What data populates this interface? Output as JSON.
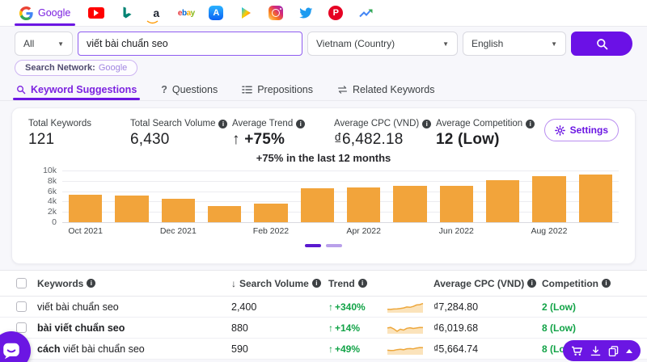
{
  "engine_bar": {
    "active_engine": "Google",
    "icons": [
      "google",
      "youtube",
      "bing",
      "amazon",
      "ebay",
      "app-store",
      "google-play",
      "instagram",
      "twitter",
      "pinterest",
      "google-trends"
    ]
  },
  "search": {
    "scope_value": "All",
    "query": "viết bài chuẩn seo",
    "country": "Vietnam (Country)",
    "language": "English"
  },
  "network_badge": {
    "label": "Search Network:",
    "value": "Google"
  },
  "tabs": [
    {
      "label": "Keyword Suggestions",
      "active": true
    },
    {
      "label": "Questions",
      "icon": "?"
    },
    {
      "label": "Prepositions"
    },
    {
      "label": "Related Keywords"
    }
  ],
  "stats": [
    {
      "label": "Total Keywords",
      "value": "121"
    },
    {
      "label": "Total Search Volume",
      "value": "6,430"
    },
    {
      "label": "Average Trend",
      "value": "+75%",
      "arrow": "↑"
    },
    {
      "label": "Average CPC (VND)",
      "value": "₫6,482.18"
    },
    {
      "label": "Average Competition",
      "value": "12 (Low)"
    }
  ],
  "settings_label": "Settings",
  "chart_data": {
    "type": "bar",
    "title": "+75% in the last 12 months",
    "categories": [
      "Oct 2021",
      "Nov 2021",
      "Dec 2021",
      "Jan 2022",
      "Feb 2022",
      "Mar 2022",
      "Apr 2022",
      "May 2022",
      "Jun 2022",
      "Jul 2022",
      "Aug 2022",
      "Sep 2022"
    ],
    "values": [
      5300,
      5150,
      4600,
      3200,
      3600,
      6500,
      6700,
      7000,
      7050,
      8200,
      8900,
      9250
    ],
    "x_tick_labels": [
      "Oct 2021",
      "Dec 2021",
      "Feb 2022",
      "Apr 2022",
      "Jun 2022",
      "Aug 2022"
    ],
    "y_ticks": [
      "10k",
      "8k",
      "6k",
      "4k",
      "2k",
      "0"
    ],
    "ylim": [
      0,
      10000
    ],
    "xlabel": "",
    "ylabel": "",
    "grid": true,
    "legend": "none",
    "bar_color": "#F2A43B"
  },
  "pagination": {
    "pages": 2,
    "active_page": 1
  },
  "table": {
    "headers": {
      "keywords": "Keywords",
      "search_volume": "Search Volume",
      "sort_arrow": "↓",
      "trend": "Trend",
      "cpc": "Average CPC (VND)",
      "competition": "Competition"
    },
    "rows": [
      {
        "keyword_bold": "",
        "keyword_rest": "viết bài chuẩn seo",
        "volume": "2,400",
        "trend": "+340%",
        "trend_arrow": "↑",
        "cpc": "₫7,284.80",
        "competition": "2 (Low)",
        "sparkline": [
          0.3,
          0.28,
          0.33,
          0.35,
          0.38,
          0.45,
          0.55,
          0.52,
          0.62,
          0.78,
          0.82,
          0.95
        ]
      },
      {
        "keyword_bold": "bài viết chuẩn seo",
        "keyword_rest": "",
        "volume": "880",
        "trend": "+14%",
        "trend_arrow": "↑",
        "cpc": "₫6,019.68",
        "competition": "8 (Low)",
        "sparkline": [
          0.55,
          0.62,
          0.45,
          0.18,
          0.42,
          0.32,
          0.52,
          0.58,
          0.5,
          0.55,
          0.62,
          0.6
        ]
      },
      {
        "keyword_bold": "cách",
        "keyword_rest": " viết bài chuẩn seo",
        "volume": "590",
        "trend": "+49%",
        "trend_arrow": "↑",
        "cpc": "₫5,664.74",
        "competition": "8 (Low)",
        "sparkline": [
          0.42,
          0.38,
          0.4,
          0.48,
          0.52,
          0.47,
          0.58,
          0.6,
          0.57,
          0.66,
          0.72,
          0.7
        ]
      }
    ]
  },
  "colors": {
    "accent_purple": "#6B11E6",
    "green": "#12A347",
    "bar_orange": "#F2A43B",
    "spark_stroke": "#EDA73C",
    "spark_fill": "#FBE3BB"
  }
}
